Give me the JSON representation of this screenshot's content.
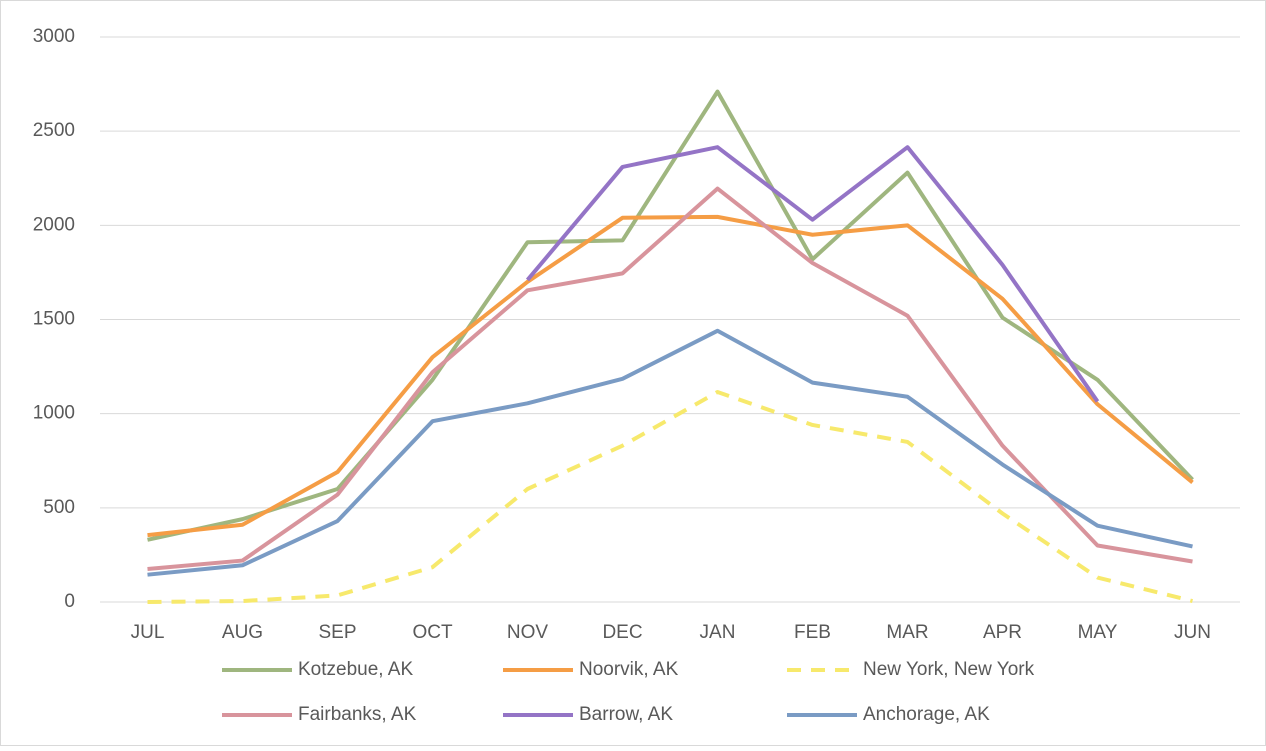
{
  "chart_data": {
    "type": "line",
    "categories": [
      "JUL",
      "AUG",
      "SEP",
      "OCT",
      "NOV",
      "DEC",
      "JAN",
      "FEB",
      "MAR",
      "APR",
      "MAY",
      "JUN"
    ],
    "series": [
      {
        "name": "Kotzebue, AK",
        "color": "#9fb67f",
        "values": [
          330,
          440,
          600,
          1180,
          1910,
          1920,
          2710,
          1820,
          2280,
          1510,
          1180,
          650
        ]
      },
      {
        "name": "Noorvik, AK",
        "color": "#f59d45",
        "values": [
          355,
          410,
          690,
          1300,
          1700,
          2040,
          2045,
          1950,
          2000,
          1610,
          1050,
          635
        ]
      },
      {
        "name": "New York, New York",
        "color": "#f7e96c",
        "dash": true,
        "values": [
          0,
          5,
          35,
          185,
          600,
          830,
          1115,
          940,
          850,
          470,
          130,
          5
        ]
      },
      {
        "name": "Fairbanks, AK",
        "color": "#d8949c",
        "values": [
          175,
          220,
          570,
          1220,
          1655,
          1745,
          2195,
          1800,
          1520,
          830,
          300,
          215
        ]
      },
      {
        "name": "Barrow, AK",
        "color": "#9474c6",
        "values": [
          null,
          null,
          null,
          null,
          1710,
          2310,
          2415,
          2030,
          2415,
          1790,
          1065,
          null
        ]
      },
      {
        "name": "Anchorage, AK",
        "color": "#7a9bc4",
        "values": [
          145,
          195,
          430,
          960,
          1055,
          1185,
          1440,
          1165,
          1090,
          730,
          405,
          295
        ]
      }
    ],
    "ylim": [
      0,
      3000
    ],
    "yticks": [
      0,
      500,
      1000,
      1500,
      2000,
      2500,
      3000
    ],
    "grid": true,
    "legend": "bottom"
  }
}
